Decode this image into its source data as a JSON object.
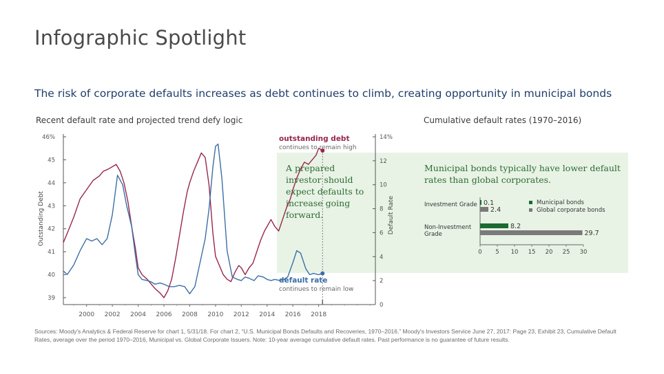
{
  "page": {
    "title": "Infographic Spotlight",
    "subtitle": "The risk of corporate defaults increases as debt continues to climb, creating opportunity in municipal bonds",
    "sources": "Sources: Moody's Analytics & Federal Reserve for chart 1, 5/31/18. For chart 2, “U.S. Municipal Bonds Defaults and Recoveries, 1970–2016.” Moody's Investors Service June 27, 2017: Page 23, Exhibit 23, Cumulative Default Rates, average over the period 1970–2016, Municipal vs. Global Corporate Issuers. Note: 10-year average cumulative default rates. Past performance is no guarantee of future results."
  },
  "colors": {
    "debt": "#98264d",
    "default_rate": "#3b6ea5",
    "municipal": "#1b6b32",
    "corporate": "#7a7a7a",
    "panel": "#e8f3e5",
    "note_text": "#2d6b33"
  },
  "notes": {
    "left": "A prepared investor should expect defaults to increase going forward.",
    "right": "Municipal bonds typically have lower default rates than global corporates."
  },
  "chart_data": [
    {
      "type": "line",
      "title": "Recent default rate and projected trend defy logic",
      "xlabel": "",
      "ylabel": "Outstanding Debt",
      "y2label": "Default Rate",
      "xlim": [
        1998.2,
        2022.4
      ],
      "ylim": [
        38.7,
        46
      ],
      "y2lim": [
        0,
        14
      ],
      "x_ticks": [
        "2000",
        "2002",
        "2004",
        "2006",
        "2008",
        "2010",
        "2012",
        "2014",
        "2016",
        "2018"
      ],
      "y_ticks": [
        "46%",
        "45",
        "44",
        "43",
        "42",
        "41",
        "40",
        "39"
      ],
      "y2_ticks": [
        "14%",
        "12",
        "10",
        "8",
        "6",
        "4",
        "2",
        "0"
      ],
      "annotations": [
        {
          "title": "outstanding debt",
          "text": "continues to remain high"
        },
        {
          "title": "default rate",
          "text": "continues to remain low"
        }
      ],
      "series": [
        {
          "key": "debt",
          "axis": "left",
          "x": [
            1998.2,
            1998.5,
            1999.0,
            1999.5,
            2000.0,
            2000.5,
            2001.0,
            2001.3,
            2001.7,
            2002.0,
            2002.3,
            2002.6,
            2002.9,
            2003.2,
            2003.5,
            2003.8,
            2004.0,
            2004.3,
            2004.7,
            2005.0,
            2005.3,
            2005.7,
            2006.0,
            2006.3,
            2006.6,
            2006.9,
            2007.2,
            2007.5,
            2007.8,
            2008.0,
            2008.3,
            2008.6,
            2008.9,
            2009.2,
            2009.5,
            2009.8,
            2010.0,
            2010.3,
            2010.6,
            2010.9,
            2011.2,
            2011.5,
            2011.8,
            2012.0,
            2012.3,
            2012.6,
            2012.9,
            2013.2,
            2013.5,
            2013.8,
            2014.0,
            2014.3,
            2014.6,
            2014.9,
            2015.2,
            2015.5,
            2015.8,
            2016.0,
            2016.3,
            2016.6,
            2016.9,
            2017.2,
            2017.5,
            2017.8,
            2018.0,
            2018.3
          ],
          "values": [
            41.4,
            41.8,
            42.5,
            43.3,
            43.7,
            44.1,
            44.3,
            44.5,
            44.6,
            44.7,
            44.8,
            44.5,
            44.0,
            43.2,
            42.1,
            41.1,
            40.3,
            40.0,
            39.8,
            39.6,
            39.4,
            39.2,
            39.0,
            39.3,
            39.8,
            40.7,
            41.7,
            42.7,
            43.6,
            44.0,
            44.5,
            44.9,
            45.3,
            45.1,
            43.9,
            41.8,
            40.8,
            40.4,
            40.0,
            39.8,
            39.7,
            40.1,
            40.4,
            40.3,
            40.0,
            40.3,
            40.5,
            41.0,
            41.5,
            41.9,
            42.1,
            42.4,
            42.1,
            41.9,
            42.4,
            42.9,
            43.3,
            43.7,
            44.2,
            44.6,
            44.9,
            44.8,
            45.0,
            45.2,
            45.5,
            45.4
          ]
        },
        {
          "key": "default_rate",
          "axis": "right",
          "x": [
            1998.2,
            1998.5,
            1999.0,
            1999.5,
            2000.0,
            2000.4,
            2000.8,
            2001.2,
            2001.6,
            2002.0,
            2002.4,
            2002.8,
            2003.1,
            2003.5,
            2003.8,
            2004.0,
            2004.3,
            2004.7,
            2005.0,
            2005.3,
            2005.7,
            2006.0,
            2006.4,
            2006.8,
            2007.2,
            2007.6,
            2008.0,
            2008.4,
            2008.8,
            2009.2,
            2009.5,
            2009.8,
            2010.0,
            2010.2,
            2010.5,
            2010.9,
            2011.3,
            2011.7,
            2012.0,
            2012.3,
            2012.6,
            2013.0,
            2013.3,
            2013.7,
            2014.0,
            2014.3,
            2014.6,
            2015.0,
            2015.3,
            2015.6,
            2016.0,
            2016.3,
            2016.6,
            2017.0,
            2017.3,
            2017.6,
            2018.0,
            2018.3
          ],
          "values": [
            2.8,
            2.5,
            3.3,
            4.5,
            5.5,
            5.3,
            5.5,
            5.0,
            5.5,
            7.5,
            10.8,
            10.0,
            8.3,
            6.5,
            4.0,
            2.5,
            2.1,
            2.0,
            1.9,
            1.7,
            1.8,
            1.7,
            1.5,
            1.5,
            1.6,
            1.5,
            0.9,
            1.5,
            3.5,
            5.5,
            8.0,
            11.5,
            13.2,
            13.4,
            10.5,
            4.5,
            2.3,
            2.1,
            2.0,
            2.3,
            2.2,
            2.0,
            2.4,
            2.3,
            2.1,
            2.0,
            2.1,
            2.0,
            2.1,
            2.3,
            3.5,
            4.5,
            4.3,
            3.0,
            2.5,
            2.6,
            2.5,
            2.6
          ]
        }
      ]
    },
    {
      "type": "bar",
      "orientation": "horizontal",
      "title": "Cumulative default rates (1970–2016)",
      "categories": [
        "Investment Grade",
        "Non-Investment Grade"
      ],
      "xlim": [
        0,
        30
      ],
      "x_ticks": [
        "0",
        "5",
        "10",
        "15",
        "20",
        "25",
        "30"
      ],
      "legend_position": "top-right",
      "series": [
        {
          "name": "Municipal bonds",
          "values": [
            0.1,
            8.2
          ],
          "labels": [
            "0.1",
            "8.2"
          ]
        },
        {
          "name": "Global corporate bonds",
          "values": [
            2.4,
            29.7
          ],
          "labels": [
            "2.4",
            "29.7"
          ]
        }
      ]
    }
  ]
}
